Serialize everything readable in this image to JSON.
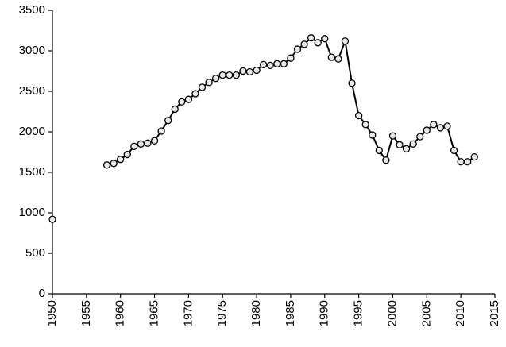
{
  "chart_data": {
    "type": "line",
    "x": [
      1950,
      1951,
      1952,
      1953,
      1954,
      1955,
      1956,
      1957,
      1958,
      1959,
      1960,
      1961,
      1962,
      1963,
      1964,
      1965,
      1966,
      1967,
      1968,
      1969,
      1970,
      1971,
      1972,
      1973,
      1974,
      1975,
      1976,
      1977,
      1978,
      1979,
      1980,
      1981,
      1982,
      1983,
      1984,
      1985,
      1986,
      1987,
      1988,
      1989,
      1990,
      1991,
      1992,
      1993,
      1994,
      1995,
      1996,
      1997,
      1998,
      1999,
      2000,
      2001,
      2002,
      2003,
      2004,
      2005,
      2006,
      2007,
      2008,
      2009,
      2010,
      2011,
      2012
    ],
    "series": [
      {
        "color": "#000000",
        "values": [
          920,
          null,
          null,
          null,
          null,
          null,
          null,
          null,
          1590,
          1610,
          1660,
          1720,
          1820,
          1850,
          1860,
          1890,
          2010,
          2140,
          2280,
          2370,
          2400,
          2470,
          2550,
          2610,
          2660,
          2700,
          2700,
          2700,
          2750,
          2740,
          2760,
          2830,
          2820,
          2840,
          2840,
          2910,
          3020,
          3080,
          3160,
          3100,
          3150,
          2920,
          2900,
          3120,
          2600,
          2200,
          2090,
          1960,
          1770,
          1650,
          1950,
          1840,
          1790,
          1850,
          1940,
          2020,
          2090,
          2050,
          2070,
          1770,
          1630,
          1630,
          1690
        ]
      }
    ],
    "xlim": [
      1950,
      2015
    ],
    "xticks": [
      1950,
      1955,
      1960,
      1965,
      1970,
      1975,
      1980,
      1985,
      1990,
      1995,
      2000,
      2005,
      2010,
      2015
    ],
    "ylim": [
      0,
      3500
    ],
    "yticks": [
      0,
      500,
      1000,
      1500,
      2000,
      2500,
      3000,
      3500
    ],
    "grid": false
  }
}
